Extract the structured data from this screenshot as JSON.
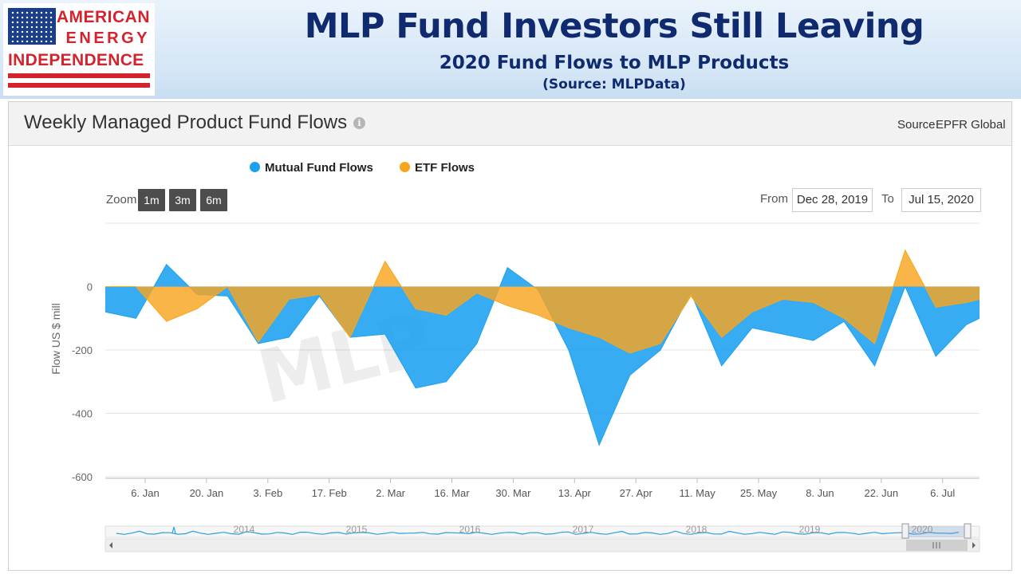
{
  "logo": {
    "line1": "AMERICAN",
    "line2": "ENERGY",
    "line3": "INDEPENDENCE"
  },
  "header": {
    "title": "MLP Fund Investors Still Leaving",
    "subtitle": "2020 Fund Flows to MLP Products",
    "source": "(Source: MLPData)"
  },
  "panel": {
    "title": "Weekly Managed Product Fund Flows",
    "source_label": "Source",
    "source_value": "EPFR Global"
  },
  "controls": {
    "zoom_label": "Zoom",
    "zoom_buttons": [
      "1m",
      "3m",
      "6m"
    ],
    "from_label": "From",
    "from_value": "Dec 28, 2019",
    "to_label": "To",
    "to_value": "Jul 15, 2020"
  },
  "watermark": "MLP",
  "colors": {
    "mutual": "#1ba1f0",
    "etf": "#f8a51e",
    "title": "#0f2a6e",
    "logo_red": "#d3232d",
    "logo_blue": "#1a3e8c"
  },
  "chart_data": {
    "type": "area",
    "title": "Weekly Managed Product Fund Flows",
    "xlabel": "",
    "ylabel": "Flow US $ mill",
    "ylim": [
      -600,
      200
    ],
    "yticks": [
      0,
      -200,
      -400,
      -600
    ],
    "xticks": [
      "6. Jan",
      "20. Jan",
      "3. Feb",
      "17. Feb",
      "2. Mar",
      "16. Mar",
      "30. Mar",
      "13. Apr",
      "27. Apr",
      "11. May",
      "25. May",
      "8. Jun",
      "22. Jun",
      "6. Jul"
    ],
    "legend_position": "top",
    "x": [
      "2019-12-28",
      "2020-01-04",
      "2020-01-11",
      "2020-01-18",
      "2020-01-25",
      "2020-02-01",
      "2020-02-08",
      "2020-02-15",
      "2020-02-22",
      "2020-03-01",
      "2020-03-08",
      "2020-03-15",
      "2020-03-22",
      "2020-03-29",
      "2020-04-05",
      "2020-04-12",
      "2020-04-19",
      "2020-04-26",
      "2020-05-03",
      "2020-05-10",
      "2020-05-17",
      "2020-05-24",
      "2020-05-31",
      "2020-06-07",
      "2020-06-14",
      "2020-06-21",
      "2020-06-28",
      "2020-07-05",
      "2020-07-12",
      "2020-07-15"
    ],
    "series": [
      {
        "name": "Mutual Fund Flows",
        "values": [
          -80,
          -100,
          70,
          -25,
          -30,
          -180,
          -160,
          -30,
          -160,
          -150,
          -320,
          -300,
          -180,
          60,
          -10,
          -200,
          -500,
          -280,
          -200,
          -20,
          -250,
          -130,
          -150,
          -170,
          -110,
          -250,
          0,
          -220,
          -120,
          -100
        ]
      },
      {
        "name": "ETF Flows",
        "values": [
          0,
          0,
          -110,
          -70,
          0,
          -175,
          -40,
          -25,
          -160,
          80,
          -70,
          -90,
          -20,
          -60,
          -90,
          -130,
          -160,
          -210,
          -180,
          -30,
          -160,
          -80,
          -40,
          -50,
          -100,
          -180,
          115,
          -65,
          -50,
          -40
        ]
      }
    ],
    "navigator": {
      "years": [
        "2014",
        "2015",
        "2016",
        "2017",
        "2018",
        "2019",
        "2020"
      ]
    }
  }
}
